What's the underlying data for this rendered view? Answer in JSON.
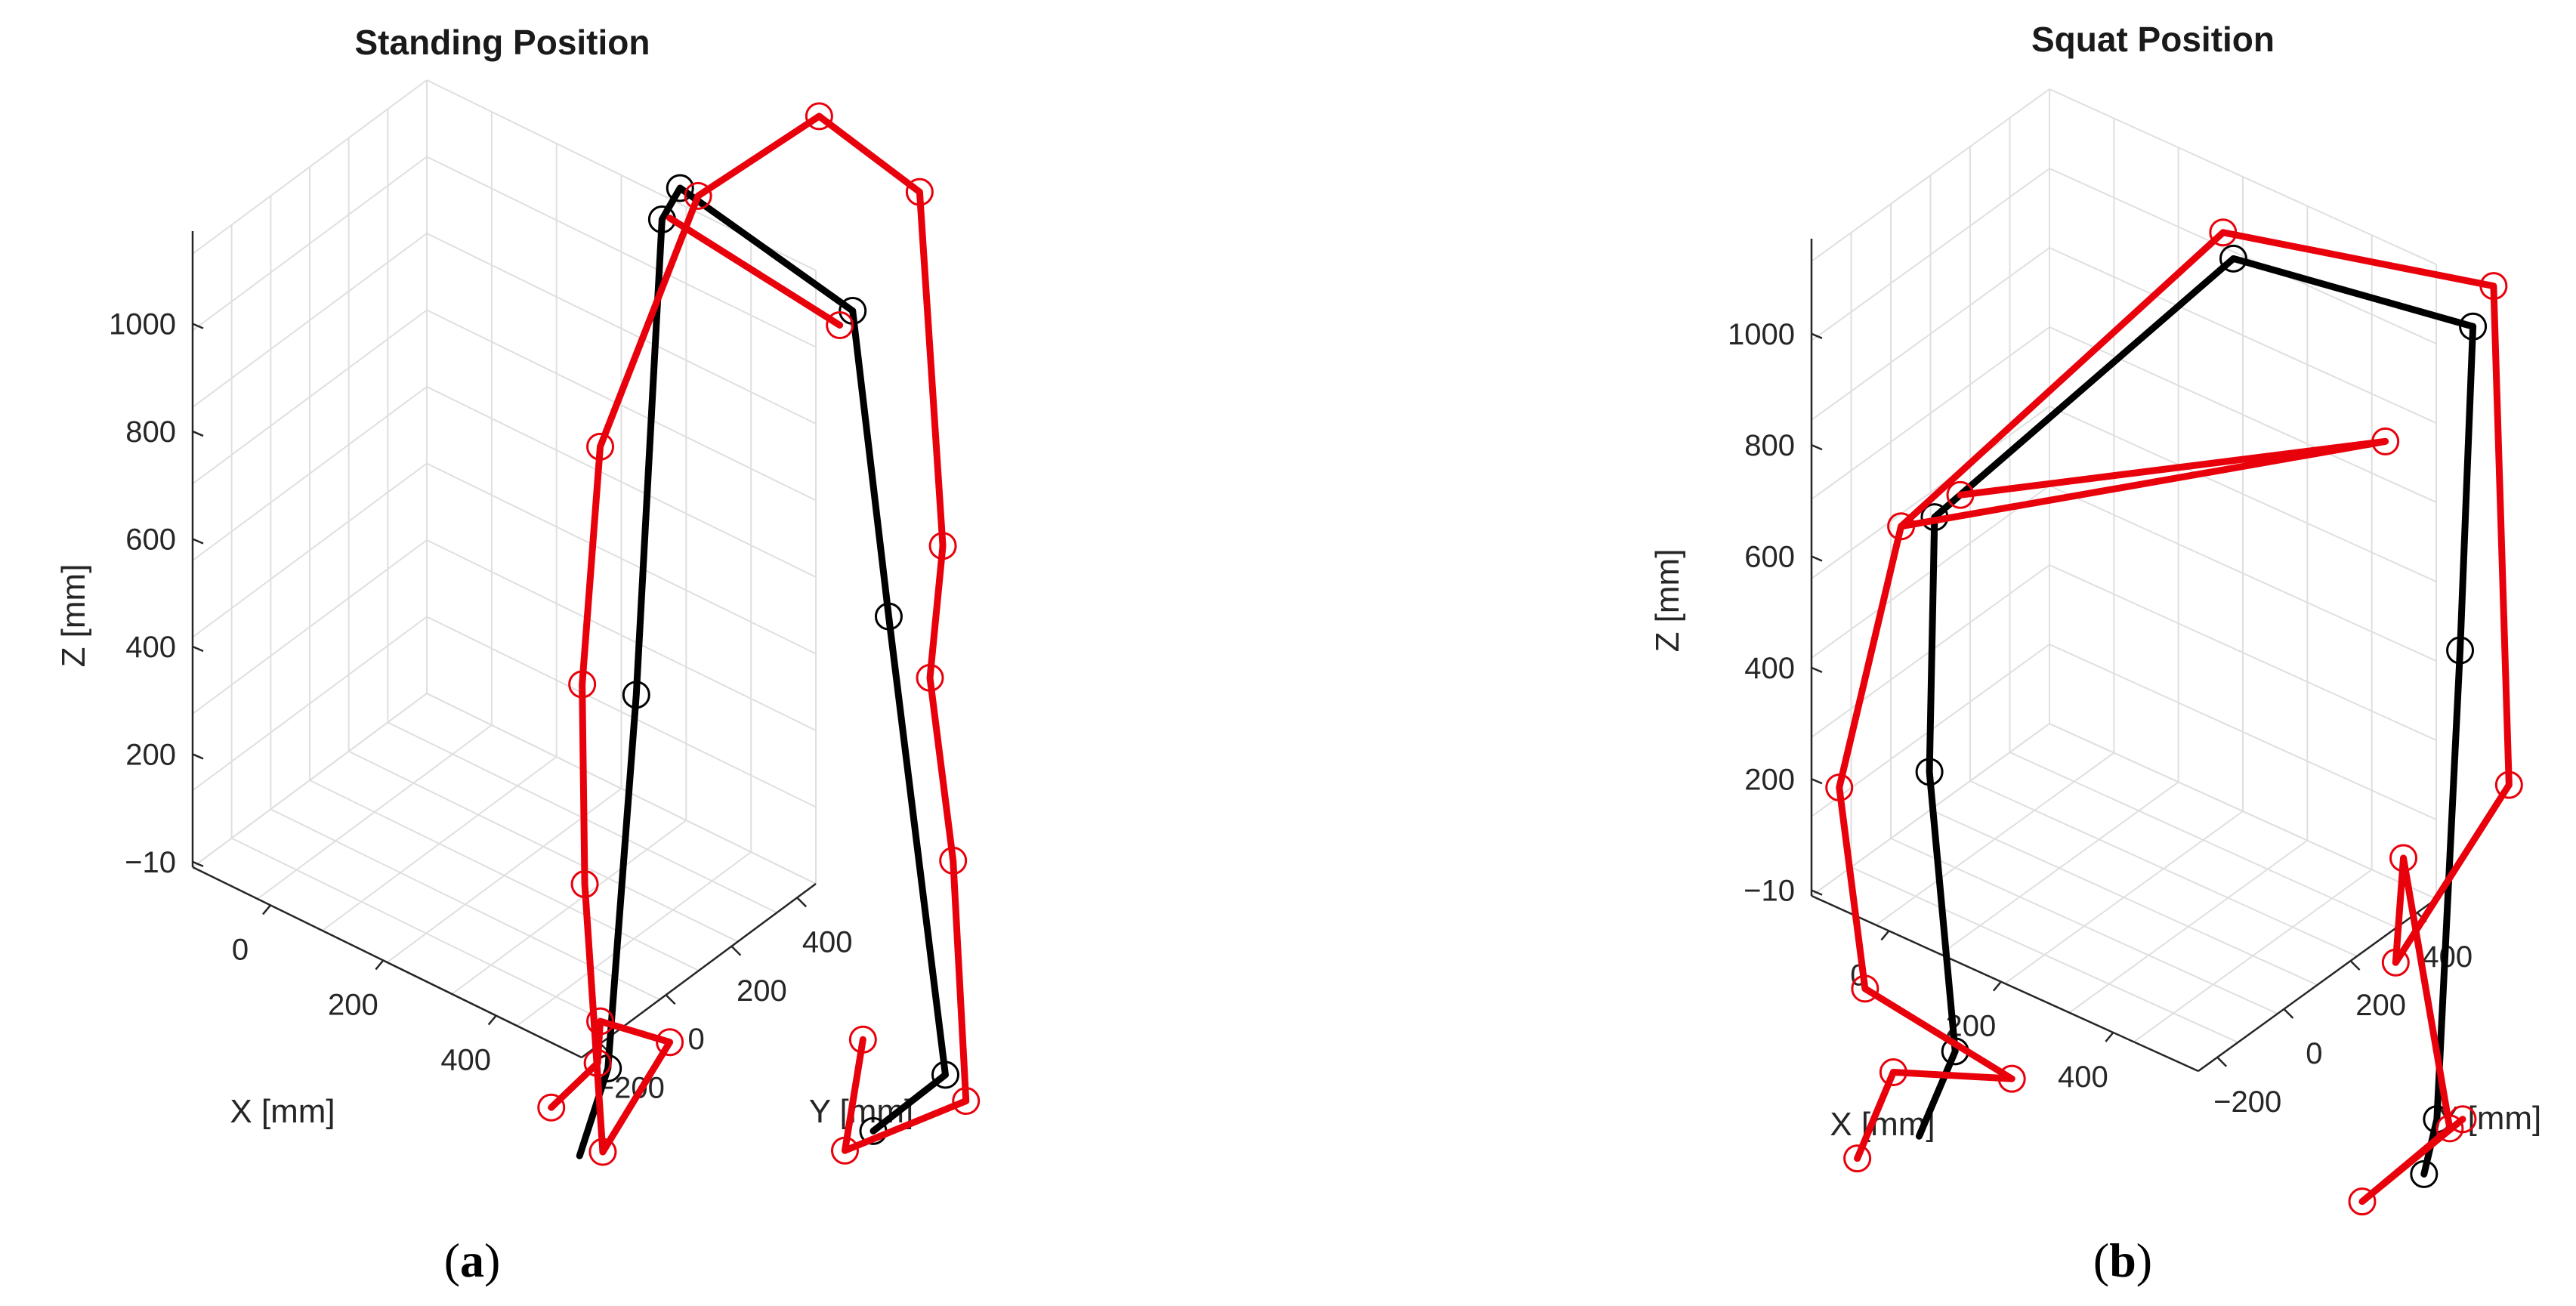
{
  "chart_data": [
    {
      "type": "line3d",
      "title": "Standing Position",
      "caption_label": "a",
      "xlabel": "X [mm]",
      "ylabel": "Y [mm]",
      "zlabel": "Z [mm]",
      "xticks": [
        "0",
        "200",
        "400"
      ],
      "yticks": [
        "−200",
        "0",
        "200",
        "400"
      ],
      "zticks": [
        "−10",
        "200",
        "400",
        "600",
        "800",
        "1000"
      ],
      "grid": true,
      "series": [
        {
          "color": "#000000",
          "segments": [
            [
              [
                0.225,
                0.885
              ],
              [
                0.236,
                0.818
              ],
              [
                0.247,
                0.532
              ],
              [
                0.257,
                0.168
              ],
              [
                0.264,
                0.144
              ],
              [
                0.331,
                0.238
              ]
            ],
            [
              [
                0.331,
                0.238
              ],
              [
                0.345,
                0.472
              ],
              [
                0.367,
                0.823
              ],
              [
                0.339,
                0.866
              ]
            ]
          ],
          "markers": [
            [
              0.236,
              0.818
            ],
            [
              0.247,
              0.532
            ],
            [
              0.257,
              0.168
            ],
            [
              0.264,
              0.144
            ],
            [
              0.331,
              0.238
            ],
            [
              0.345,
              0.472
            ],
            [
              0.367,
              0.823
            ],
            [
              0.339,
              0.866
            ]
          ]
        },
        {
          "color": "#e8000b",
          "segments": [
            [
              [
                0.214,
                0.848
              ],
              [
                0.232,
                0.814
              ],
              [
                0.233,
                0.782
              ],
              [
                0.26,
                0.798
              ],
              [
                0.234,
                0.882
              ]
            ],
            [
              [
                0.234,
                0.882
              ],
              [
                0.227,
                0.677
              ],
              [
                0.226,
                0.524
              ],
              [
                0.233,
                0.342
              ],
              [
                0.271,
                0.15
              ],
              [
                0.318,
                0.089
              ]
            ],
            [
              [
                0.26,
                0.167
              ],
              [
                0.326,
                0.249
              ]
            ],
            [
              [
                0.318,
                0.089
              ],
              [
                0.357,
                0.147
              ],
              [
                0.366,
                0.418
              ],
              [
                0.361,
                0.519
              ],
              [
                0.37,
                0.659
              ],
              [
                0.375,
                0.843
              ],
              [
                0.328,
                0.881
              ],
              [
                0.335,
                0.796
              ]
            ]
          ],
          "markers": [
            [
              0.214,
              0.848
            ],
            [
              0.232,
              0.814
            ],
            [
              0.233,
              0.782
            ],
            [
              0.26,
              0.798
            ],
            [
              0.234,
              0.882
            ],
            [
              0.227,
              0.677
            ],
            [
              0.226,
              0.524
            ],
            [
              0.233,
              0.342
            ],
            [
              0.271,
              0.15
            ],
            [
              0.318,
              0.089
            ],
            [
              0.326,
              0.249
            ],
            [
              0.357,
              0.147
            ],
            [
              0.366,
              0.418
            ],
            [
              0.361,
              0.519
            ],
            [
              0.37,
              0.659
            ],
            [
              0.375,
              0.843
            ],
            [
              0.328,
              0.881
            ],
            [
              0.335,
              0.796
            ]
          ]
        }
      ]
    },
    {
      "type": "line3d",
      "title": "Squat Position",
      "caption_label": "b",
      "xlabel": "X [mm]",
      "ylabel": "Y [mm]",
      "zlabel": "Z [mm]",
      "xticks": [
        "0",
        "200",
        "400"
      ],
      "yticks": [
        "−200",
        "0",
        "200",
        "400"
      ],
      "zticks": [
        "−10",
        "200",
        "400",
        "600",
        "800",
        "1000"
      ],
      "grid": true,
      "series": [
        {
          "color": "#000000",
          "segments": [
            [
              [
                0.245,
                0.87
              ],
              [
                0.259,
                0.805
              ],
              [
                0.249,
                0.591
              ],
              [
                0.251,
                0.396
              ],
              [
                0.367,
                0.198
              ],
              [
                0.46,
                0.25
              ]
            ],
            [
              [
                0.46,
                0.25
              ],
              [
                0.455,
                0.498
              ],
              [
                0.446,
                0.857
              ],
              [
                0.441,
                0.899
              ]
            ]
          ],
          "markers": [
            [
              0.259,
              0.805
            ],
            [
              0.249,
              0.591
            ],
            [
              0.251,
              0.396
            ],
            [
              0.367,
              0.198
            ],
            [
              0.46,
              0.25
            ],
            [
              0.455,
              0.498
            ],
            [
              0.446,
              0.857
            ],
            [
              0.441,
              0.899
            ]
          ]
        },
        {
          "color": "#e8000b",
          "segments": [
            [
              [
                0.221,
                0.887
              ],
              [
                0.235,
                0.821
              ],
              [
                0.281,
                0.826
              ],
              [
                0.224,
                0.757
              ],
              [
                0.214,
                0.603
              ],
              [
                0.238,
                0.403
              ]
            ],
            [
              [
                0.238,
                0.403
              ],
              [
                0.363,
                0.178
              ],
              [
                0.468,
                0.219
              ],
              [
                0.474,
                0.601
              ],
              [
                0.43,
                0.737
              ],
              [
                0.433,
                0.657
              ],
              [
                0.451,
                0.864
              ],
              [
                0.417,
                0.92
              ],
              [
                0.456,
                0.857
              ]
            ],
            [
              [
                0.238,
                0.403
              ],
              [
                0.426,
                0.338
              ],
              [
                0.261,
                0.379
              ]
            ]
          ],
          "markers": [
            [
              0.221,
              0.887
            ],
            [
              0.235,
              0.821
            ],
            [
              0.281,
              0.826
            ],
            [
              0.224,
              0.757
            ],
            [
              0.214,
              0.603
            ],
            [
              0.238,
              0.403
            ],
            [
              0.363,
              0.178
            ],
            [
              0.468,
              0.219
            ],
            [
              0.474,
              0.601
            ],
            [
              0.43,
              0.737
            ],
            [
              0.433,
              0.657
            ],
            [
              0.451,
              0.864
            ],
            [
              0.417,
              0.92
            ],
            [
              0.456,
              0.857
            ],
            [
              0.426,
              0.338
            ],
            [
              0.261,
              0.379
            ]
          ]
        }
      ]
    }
  ]
}
